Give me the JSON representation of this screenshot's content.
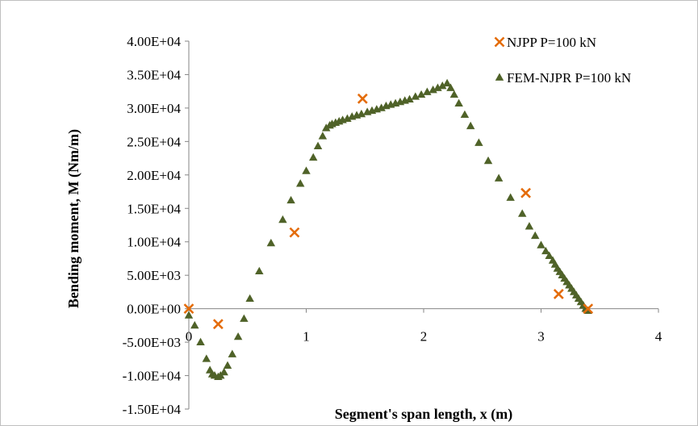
{
  "chart_data": {
    "type": "scatter",
    "title": "",
    "xlabel": "Segment's span length, x (m)",
    "ylabel": "Bending moment,  M (Nm/m)",
    "xlim": [
      0,
      4
    ],
    "ylim": [
      -15000,
      40000
    ],
    "x_ticks": [
      0,
      1,
      2,
      3,
      4
    ],
    "x_tick_labels": [
      "0",
      "1",
      "2",
      "3",
      "4"
    ],
    "y_ticks": [
      40000,
      35000,
      30000,
      25000,
      20000,
      15000,
      10000,
      5000,
      0,
      -5000,
      -10000,
      -15000
    ],
    "y_tick_labels": [
      "4.00E+04",
      "3.50E+04",
      "3.00E+04",
      "2.50E+04",
      "2.00E+04",
      "1.50E+04",
      "1.00E+04",
      "5.00E+03",
      "0.00E+00",
      "-5.00E+03",
      "-1.00E+04",
      "-1.50E+04"
    ],
    "grid": false,
    "legend_position": "top-right",
    "series": [
      {
        "name": "NJPP P=100 kN",
        "marker": "x",
        "color": "#E46C0A",
        "x": [
          0.0,
          0.25,
          0.9,
          1.48,
          2.87,
          3.15,
          3.4
        ],
        "y": [
          0,
          -2300,
          11400,
          31400,
          17300,
          2200,
          0
        ]
      },
      {
        "name": "FEM-NJPR P=100 kN",
        "marker": "triangle",
        "color": "#4F6228",
        "x": [
          0.0,
          0.05,
          0.1,
          0.15,
          0.18,
          0.2,
          0.22,
          0.25,
          0.27,
          0.3,
          0.33,
          0.37,
          0.42,
          0.47,
          0.52,
          0.6,
          0.7,
          0.8,
          0.87,
          0.95,
          1.0,
          1.06,
          1.1,
          1.14,
          1.17,
          1.2,
          1.22,
          1.25,
          1.28,
          1.31,
          1.35,
          1.39,
          1.43,
          1.47,
          1.52,
          1.56,
          1.6,
          1.64,
          1.68,
          1.72,
          1.76,
          1.8,
          1.84,
          1.88,
          1.93,
          1.98,
          2.03,
          2.08,
          2.12,
          2.16,
          2.2,
          2.23,
          2.26,
          2.3,
          2.35,
          2.4,
          2.47,
          2.55,
          2.64,
          2.74,
          2.84,
          2.9,
          2.95,
          3.0,
          3.04,
          3.07,
          3.1,
          3.12,
          3.14,
          3.16,
          3.18,
          3.2,
          3.22,
          3.24,
          3.26,
          3.28,
          3.3,
          3.32,
          3.34,
          3.36,
          3.38,
          3.4
        ],
        "y": [
          -1000,
          -2500,
          -5000,
          -7500,
          -9200,
          -9800,
          -10000,
          -10200,
          -10000,
          -9500,
          -8500,
          -6800,
          -4200,
          -1500,
          1500,
          5600,
          9800,
          13300,
          16200,
          18700,
          20600,
          22600,
          24300,
          25800,
          27000,
          27400,
          27600,
          27800,
          28000,
          28200,
          28400,
          28700,
          28900,
          29100,
          29400,
          29600,
          29800,
          30000,
          30300,
          30500,
          30700,
          30900,
          31100,
          31300,
          31700,
          32000,
          32400,
          32700,
          33000,
          33300,
          33700,
          33000,
          32000,
          30700,
          29000,
          27300,
          24800,
          22100,
          19500,
          16600,
          14200,
          12300,
          10900,
          9500,
          8600,
          7900,
          7200,
          6600,
          6000,
          5500,
          5000,
          4500,
          4000,
          3500,
          3000,
          2500,
          2000,
          1500,
          1000,
          500,
          0,
          -300
        ]
      }
    ]
  },
  "colors": {
    "njpp": "#E46C0A",
    "fem": "#4F6228",
    "axis": "#868686",
    "frame": "#bfbfbf"
  }
}
